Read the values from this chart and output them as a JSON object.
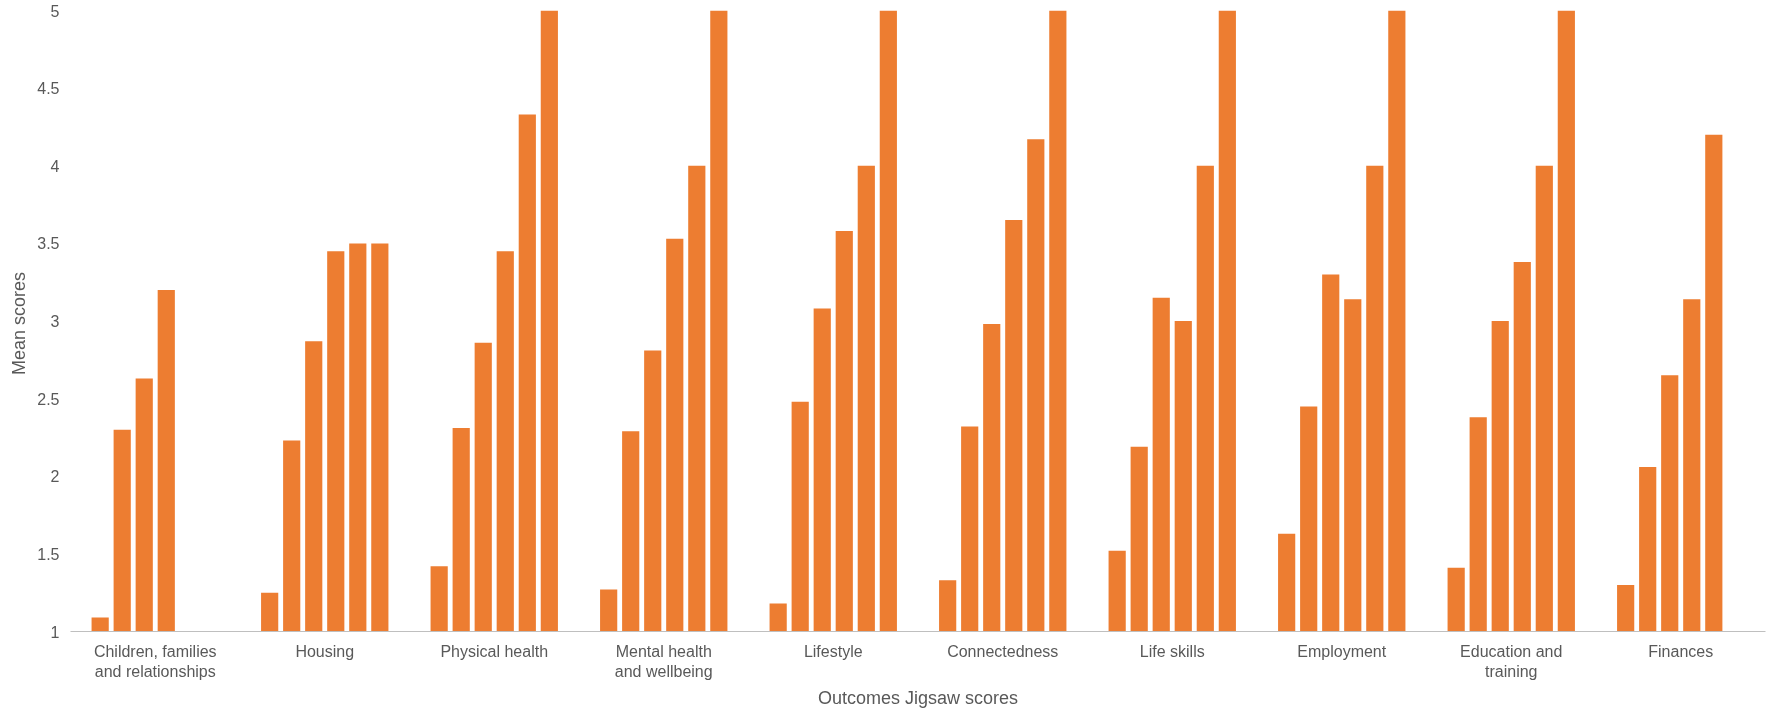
{
  "chart_data": {
    "type": "bar",
    "xlabel": "Outcomes Jigsaw scores",
    "ylabel": "Mean  scores",
    "categories": [
      "Children, families\nand relationships",
      "Housing",
      "Physical health",
      "Mental health\nand wellbeing",
      "Lifestyle",
      "Connectedness",
      "Life skills",
      "Employment",
      "Education and\ntraining",
      "Finances"
    ],
    "series": [
      {
        "color": "#ed7d31",
        "values": [
          1.09,
          1.25,
          1.42,
          1.27,
          1.18,
          1.33,
          1.52,
          1.63,
          1.41,
          1.3
        ]
      },
      {
        "color": "#ed7d31",
        "values": [
          2.3,
          2.23,
          2.31,
          2.29,
          2.48,
          2.32,
          2.19,
          2.45,
          2.38,
          2.06
        ]
      },
      {
        "color": "#ed7d31",
        "values": [
          2.63,
          2.87,
          2.86,
          2.81,
          3.08,
          2.98,
          3.15,
          3.3,
          3.0,
          2.65
        ]
      },
      {
        "color": "#ed7d31",
        "values": [
          3.2,
          3.45,
          3.45,
          3.53,
          3.58,
          3.65,
          3.0,
          3.14,
          3.38,
          3.14
        ]
      },
      {
        "color": "#ed7d31",
        "values": [
          null,
          3.5,
          4.33,
          4.0,
          4.0,
          4.17,
          4.0,
          4.0,
          4.0,
          4.2
        ]
      },
      {
        "color": "#ed7d31",
        "values": [
          null,
          3.5,
          5.0,
          5.0,
          5.0,
          5.0,
          5.0,
          5.0,
          5.0,
          null
        ]
      }
    ],
    "ylim": [
      1,
      5
    ],
    "yticks": [
      1,
      1.5,
      2,
      2.5,
      3,
      3.5,
      4,
      4.5,
      5
    ],
    "grid": false
  }
}
